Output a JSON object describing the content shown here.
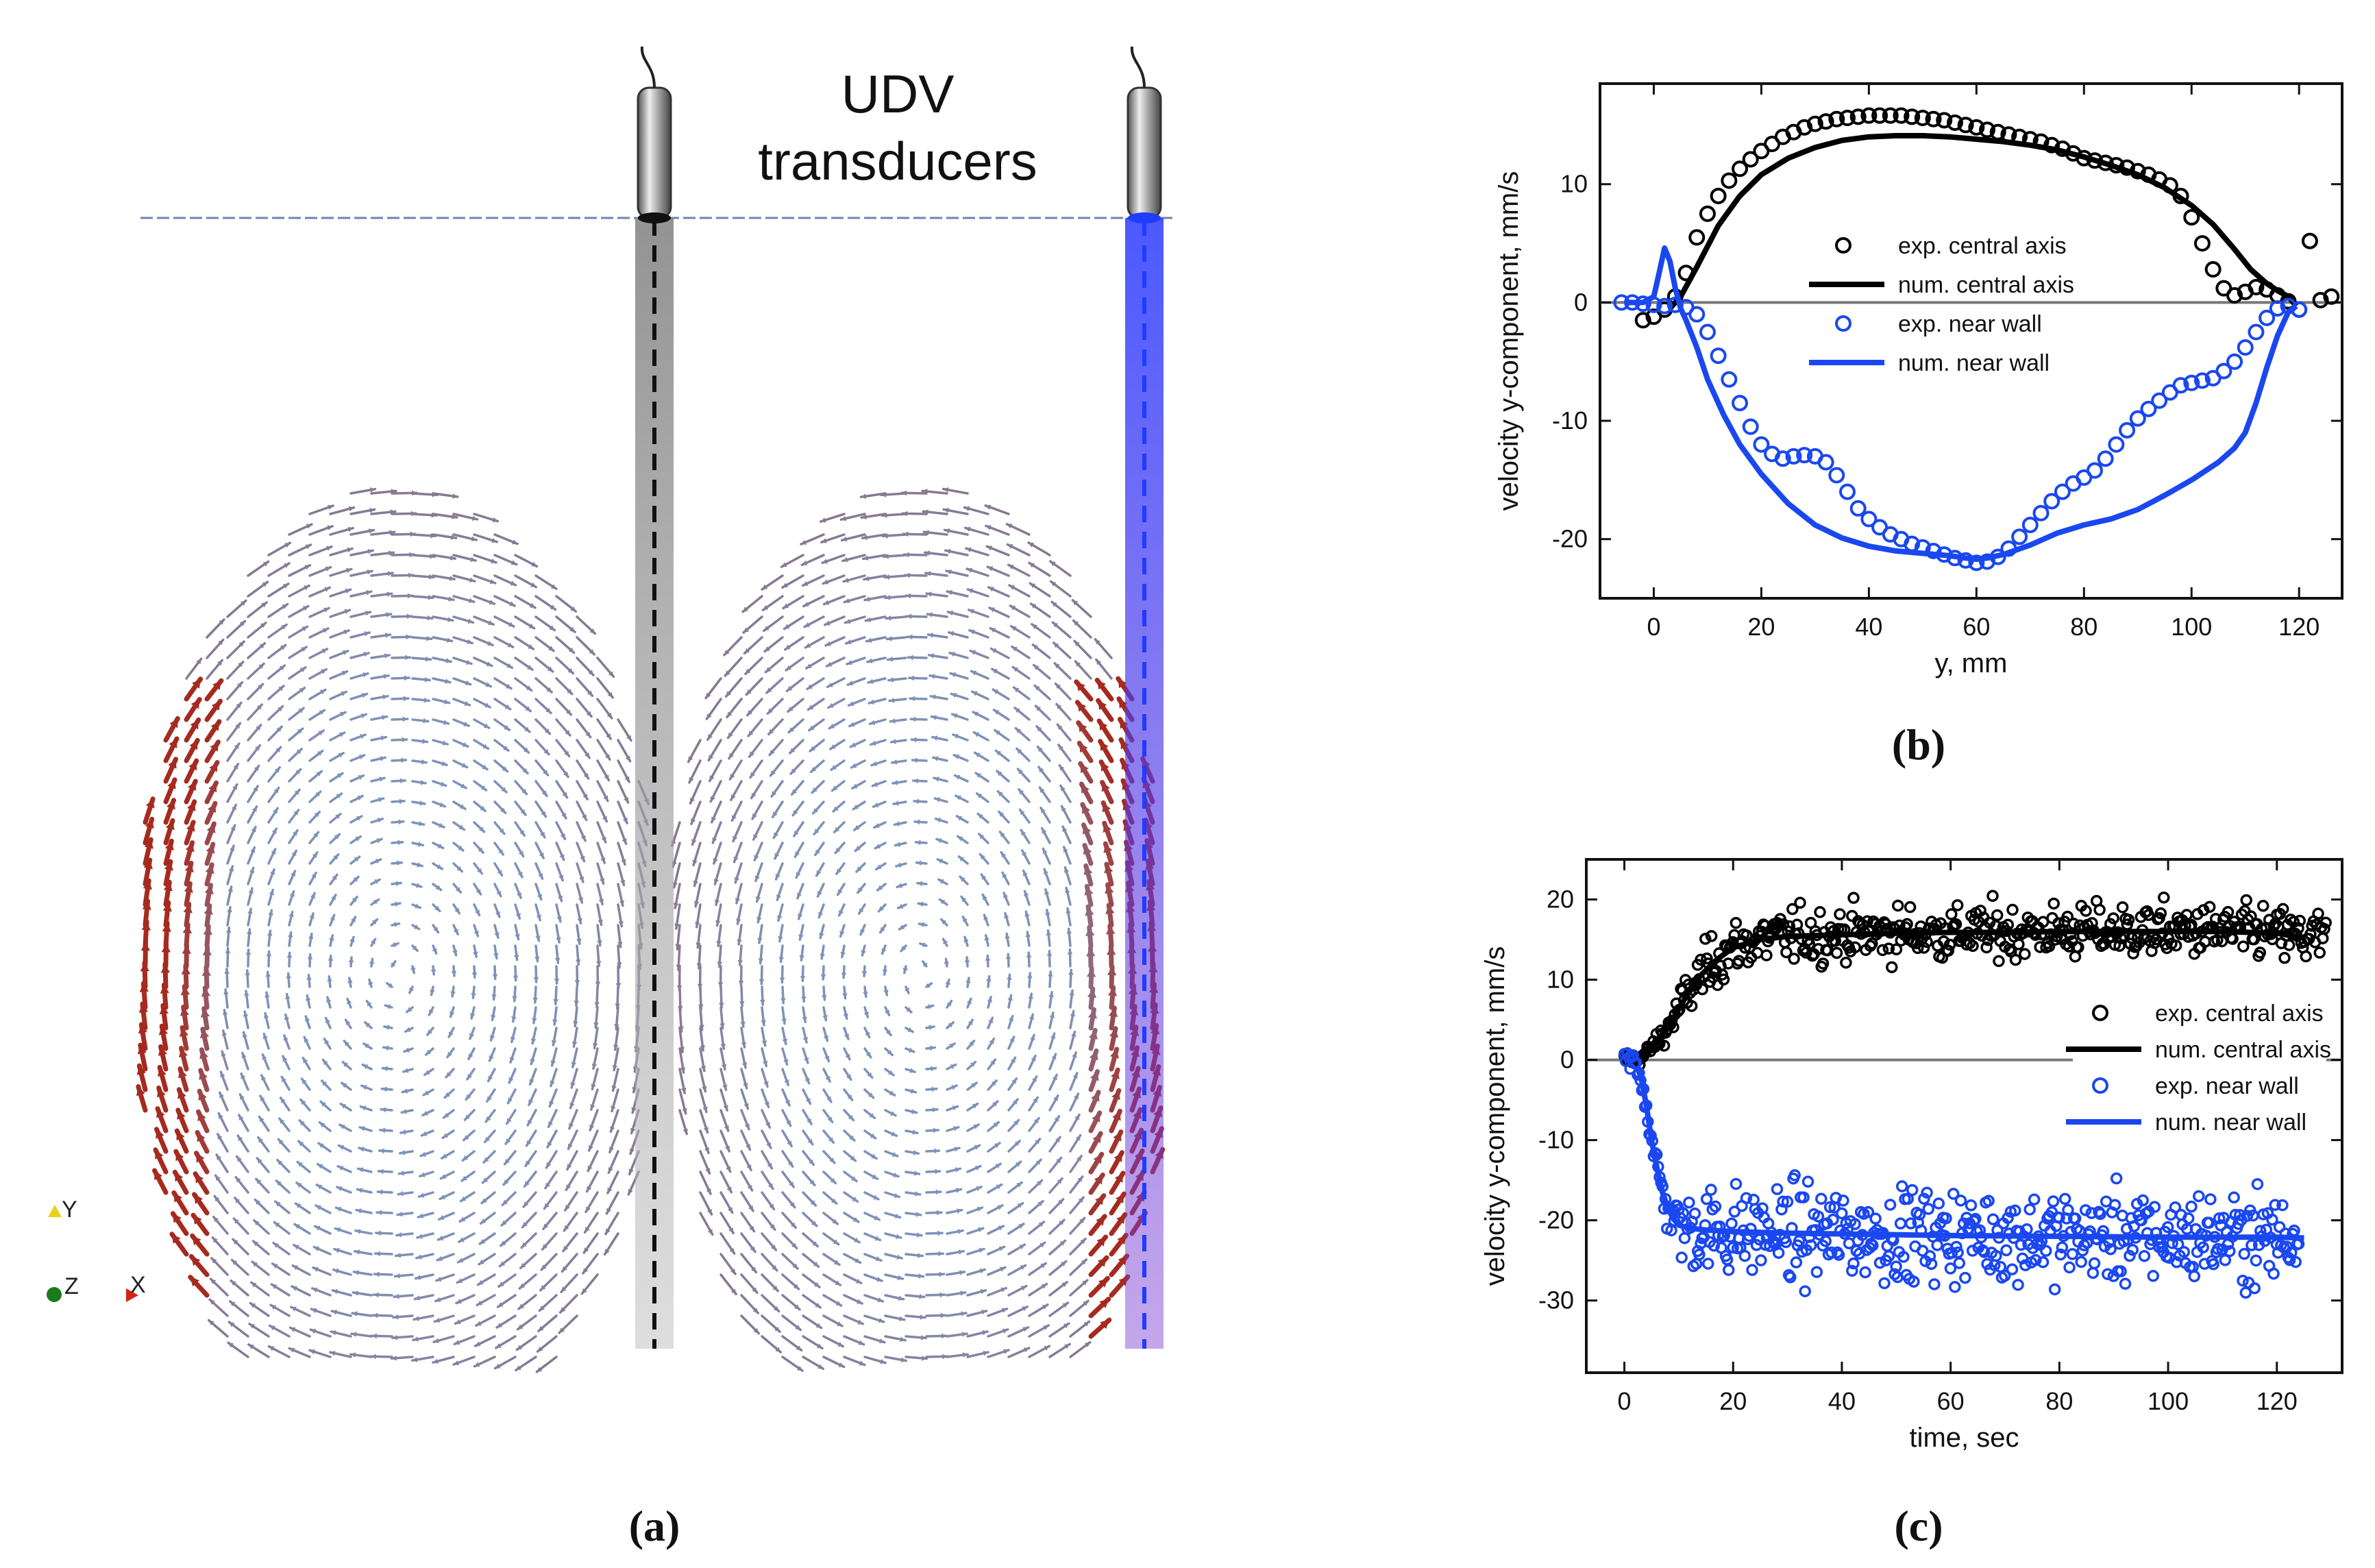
{
  "panel_a": {
    "title_line1": "UDV",
    "title_line2": "transducers",
    "caption": "(a)",
    "axes_triad": {
      "y": "Y",
      "z": "Z",
      "x": "X"
    },
    "colors": {
      "probe_center": "#555555",
      "probe_wall": "#1f3cff",
      "arrow_slow": "#7f93b8",
      "arrow_fast": "#a52a1f"
    }
  },
  "chart_data": [
    {
      "type": "scatter",
      "id": "b",
      "caption": "(b)",
      "xlabel": "y, mm",
      "ylabel": "velocity y-component, mm/s",
      "xlim": [
        -10,
        128
      ],
      "ylim": [
        -25,
        18.5
      ],
      "xticks": [
        0,
        20,
        40,
        60,
        80,
        100,
        120
      ],
      "yticks": [
        -20,
        -10,
        0,
        10
      ],
      "legend_position": "center-right",
      "legend": [
        "exp. central axis",
        "num. central axis",
        "exp. near wall",
        "num. near wall"
      ],
      "colors": {
        "central": "#000000",
        "wall": "#1a47f0"
      },
      "series": [
        {
          "name": "exp. central axis",
          "kind": "points",
          "x": [
            -2,
            0,
            2,
            4,
            6,
            8,
            10,
            12,
            14,
            16,
            18,
            20,
            22,
            24,
            26,
            28,
            30,
            32,
            34,
            36,
            38,
            40,
            42,
            44,
            46,
            48,
            50,
            52,
            54,
            56,
            58,
            60,
            62,
            64,
            66,
            68,
            70,
            72,
            74,
            76,
            78,
            80,
            82,
            84,
            86,
            88,
            90,
            92,
            94,
            96,
            98,
            100,
            102,
            104,
            106,
            108,
            110,
            112,
            114,
            116,
            118,
            120,
            122,
            124,
            126
          ],
          "y": [
            -1.5,
            -1.2,
            -0.6,
            0.5,
            2.5,
            5.5,
            7.5,
            9.0,
            10.3,
            11.3,
            12.1,
            12.8,
            13.4,
            14.0,
            14.4,
            14.8,
            15.1,
            15.3,
            15.5,
            15.6,
            15.7,
            15.8,
            15.8,
            15.8,
            15.8,
            15.7,
            15.6,
            15.5,
            15.4,
            15.2,
            15.0,
            14.8,
            14.6,
            14.4,
            14.2,
            14.0,
            13.8,
            13.6,
            13.3,
            13.0,
            12.6,
            12.2,
            12.0,
            11.8,
            11.6,
            11.4,
            11.1,
            10.8,
            10.4,
            9.9,
            9.0,
            7.2,
            5.0,
            2.8,
            1.2,
            0.6,
            0.9,
            1.3,
            1.1,
            0.6,
            0.1,
            -0.6,
            5.2,
            0.2,
            0.5
          ]
        },
        {
          "name": "num. central axis",
          "kind": "line",
          "x": [
            3,
            5,
            8,
            12,
            16,
            20,
            25,
            30,
            35,
            40,
            45,
            50,
            55,
            60,
            65,
            70,
            75,
            80,
            85,
            90,
            95,
            100,
            104,
            108,
            111,
            114,
            116,
            118,
            119.5
          ],
          "y": [
            -0.5,
            0.5,
            3.0,
            6.5,
            9.0,
            10.8,
            12.2,
            13.1,
            13.7,
            14.0,
            14.1,
            14.1,
            14.0,
            13.8,
            13.6,
            13.3,
            12.9,
            12.3,
            11.6,
            10.8,
            9.7,
            8.2,
            6.6,
            4.5,
            2.8,
            1.6,
            1.0,
            0.5,
            -0.3
          ]
        },
        {
          "name": "exp. near wall",
          "kind": "points",
          "x": [
            -6,
            -4,
            -2,
            0,
            2,
            4,
            6,
            8,
            10,
            12,
            14,
            16,
            18,
            20,
            22,
            24,
            26,
            28,
            30,
            32,
            34,
            36,
            38,
            40,
            42,
            44,
            46,
            48,
            50,
            52,
            54,
            56,
            58,
            60,
            62,
            64,
            66,
            68,
            70,
            72,
            74,
            76,
            78,
            80,
            82,
            84,
            86,
            88,
            90,
            92,
            94,
            96,
            98,
            100,
            102,
            104,
            106,
            108,
            110,
            112,
            114,
            116,
            118,
            120
          ],
          "y": [
            0,
            0,
            -0.1,
            -0.2,
            -0.3,
            -0.2,
            -0.4,
            -1.0,
            -2.5,
            -4.5,
            -6.5,
            -8.5,
            -10.5,
            -12.0,
            -12.8,
            -13.2,
            -13.0,
            -12.9,
            -13.0,
            -13.5,
            -14.6,
            -16.0,
            -17.4,
            -18.3,
            -19.0,
            -19.6,
            -20.0,
            -20.4,
            -20.7,
            -21.0,
            -21.3,
            -21.6,
            -21.8,
            -22.0,
            -21.9,
            -21.5,
            -20.8,
            -19.8,
            -18.8,
            -17.8,
            -16.8,
            -16.0,
            -15.3,
            -14.8,
            -14.2,
            -13.2,
            -12.0,
            -10.8,
            -9.8,
            -9.0,
            -8.3,
            -7.6,
            -7.0,
            -6.8,
            -6.6,
            -6.4,
            -5.8,
            -5.0,
            -3.8,
            -2.5,
            -1.3,
            -0.5,
            -0.3,
            -0.6
          ]
        },
        {
          "name": "num. near wall",
          "kind": "line",
          "x": [
            -5,
            -2,
            0,
            1,
            2,
            3,
            4,
            5,
            6,
            8,
            10,
            13,
            16,
            20,
            25,
            30,
            35,
            40,
            45,
            50,
            55,
            58,
            60,
            62,
            65,
            70,
            75,
            80,
            85,
            90,
            95,
            100,
            105,
            108,
            110,
            112,
            114,
            116,
            118,
            119.5
          ],
          "y": [
            0,
            0,
            0.5,
            2.5,
            4.6,
            3.5,
            1.2,
            -0.5,
            -1.5,
            -3.8,
            -6.5,
            -9.5,
            -12.0,
            -14.5,
            -17.0,
            -18.8,
            -19.9,
            -20.6,
            -21.0,
            -21.2,
            -21.4,
            -21.6,
            -21.7,
            -21.6,
            -21.3,
            -20.5,
            -19.5,
            -18.8,
            -18.3,
            -17.5,
            -16.3,
            -15.0,
            -13.5,
            -12.3,
            -11.0,
            -8.5,
            -5.5,
            -2.8,
            -0.8,
            -0.3
          ]
        }
      ]
    },
    {
      "type": "scatter",
      "id": "c",
      "caption": "(c)",
      "xlabel": "time, sec",
      "ylabel": "velocity y-component, mm/s",
      "xlim": [
        -7,
        132
      ],
      "ylim": [
        -39,
        25
      ],
      "xticks": [
        0,
        20,
        40,
        60,
        80,
        100,
        120
      ],
      "yticks": [
        -30,
        -20,
        -10,
        0,
        10,
        20
      ],
      "legend_position": "center-right",
      "legend": [
        "exp. central axis",
        "num. central axis",
        "exp. near wall",
        "num. near wall"
      ],
      "colors": {
        "central": "#000000",
        "wall": "#1a47f0"
      },
      "series": [
        {
          "name": "num. central axis",
          "kind": "line",
          "x": [
            0,
            3,
            5,
            8,
            11,
            14,
            17,
            20,
            25,
            30,
            40,
            50,
            60,
            70,
            80,
            90,
            100,
            110,
            120,
            125
          ],
          "y": [
            0,
            0.2,
            1.5,
            4.0,
            7.5,
            10.5,
            12.5,
            14.0,
            15.0,
            15.4,
            15.6,
            15.8,
            15.9,
            15.9,
            16.0,
            16.0,
            16.0,
            16.0,
            15.8,
            15.2
          ]
        },
        {
          "name": "num. near wall",
          "kind": "line",
          "x": [
            0,
            2,
            3,
            4,
            5,
            6,
            7,
            8,
            9,
            10,
            12,
            15,
            20,
            30,
            40,
            60,
            80,
            100,
            120,
            125
          ],
          "y": [
            0,
            -0.5,
            -2.0,
            -5.5,
            -10.0,
            -13.5,
            -16.5,
            -18.5,
            -19.8,
            -20.6,
            -21.0,
            -21.2,
            -21.4,
            -21.6,
            -21.7,
            -21.9,
            -22.0,
            -22.1,
            -22.1,
            -22.2
          ]
        },
        {
          "name": "exp. central axis",
          "kind": "noisy_points",
          "n": 460,
          "t_start": 0,
          "t_end": 129,
          "mean_plateau": 16.0,
          "scatter": 2.8
        },
        {
          "name": "exp. near wall",
          "kind": "noisy_points",
          "n": 460,
          "t_start": 0,
          "t_end": 124,
          "mean_plateau": -22.0,
          "scatter": 4.8
        }
      ]
    }
  ]
}
